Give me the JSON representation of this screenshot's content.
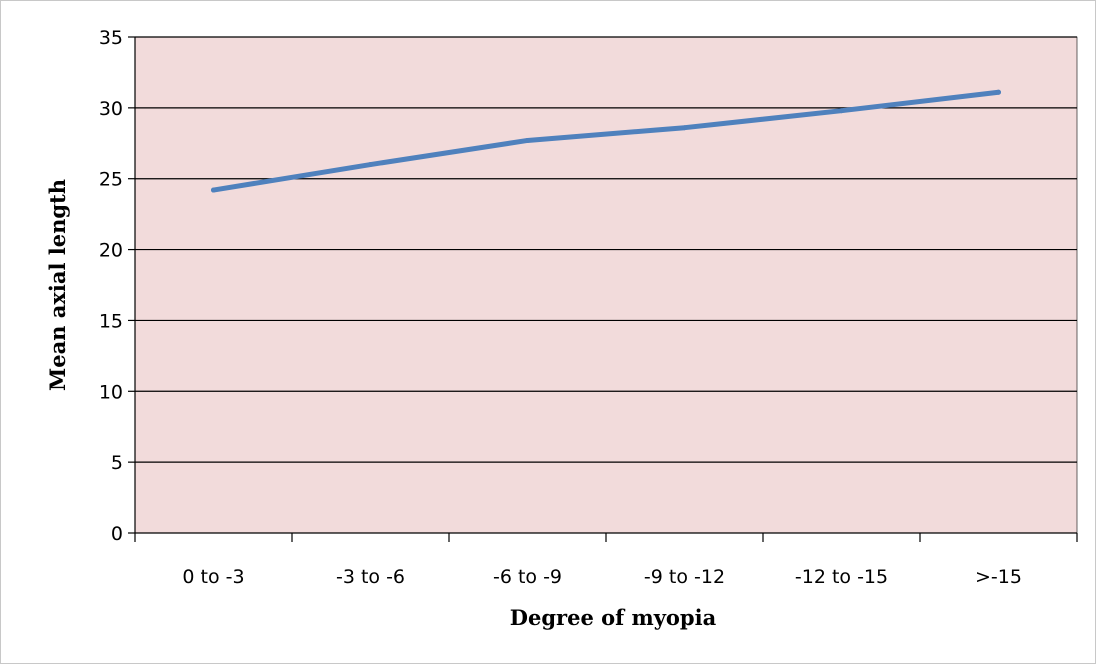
{
  "chart_data": {
    "type": "line",
    "title": "",
    "xlabel": "Degree  of myopia",
    "ylabel": "Mean axial length",
    "categories": [
      "0 to -3",
      "-3 to -6",
      "-6 to -9",
      "-9 to -12",
      "-12 to -15",
      ">-15"
    ],
    "series": [
      {
        "values": [
          24.2,
          26.0,
          27.7,
          28.6,
          29.8,
          31.1
        ]
      }
    ],
    "ylim": [
      0,
      35
    ],
    "yticks": [
      0,
      5,
      10,
      15,
      20,
      25,
      30,
      35
    ],
    "grid": true,
    "legend": "none",
    "colors": {
      "plot_background": "#f2dbdb",
      "line": "#4f81bd",
      "gridline": "#000000",
      "frame_border": "#c8c8c8"
    }
  }
}
